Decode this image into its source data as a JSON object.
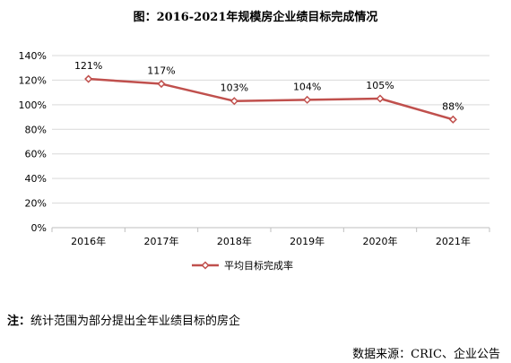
{
  "title": "图：2016-2021年规模房企业绩目标完成情况",
  "note_label": "注：",
  "note_text": "统计范围为部分提出全年业绩目标的房企",
  "source": "数据来源：CRIC、企业公告",
  "chart_data": {
    "type": "line",
    "categories": [
      "2016年",
      "2017年",
      "2018年",
      "2019年",
      "2020年",
      "2021年"
    ],
    "series": [
      {
        "name": "平均目标完成率",
        "values": [
          121,
          117,
          103,
          104,
          105,
          88
        ],
        "color": "#c0504d"
      }
    ],
    "data_labels": [
      "121%",
      "117%",
      "103%",
      "104%",
      "105%",
      "88%"
    ],
    "ylim": [
      0,
      140
    ],
    "yticks": [
      0,
      20,
      40,
      60,
      80,
      100,
      120,
      140
    ],
    "ytick_labels": [
      "0%",
      "20%",
      "40%",
      "60%",
      "80%",
      "100%",
      "120%",
      "140%"
    ],
    "grid": true,
    "legend_position": "bottom"
  }
}
